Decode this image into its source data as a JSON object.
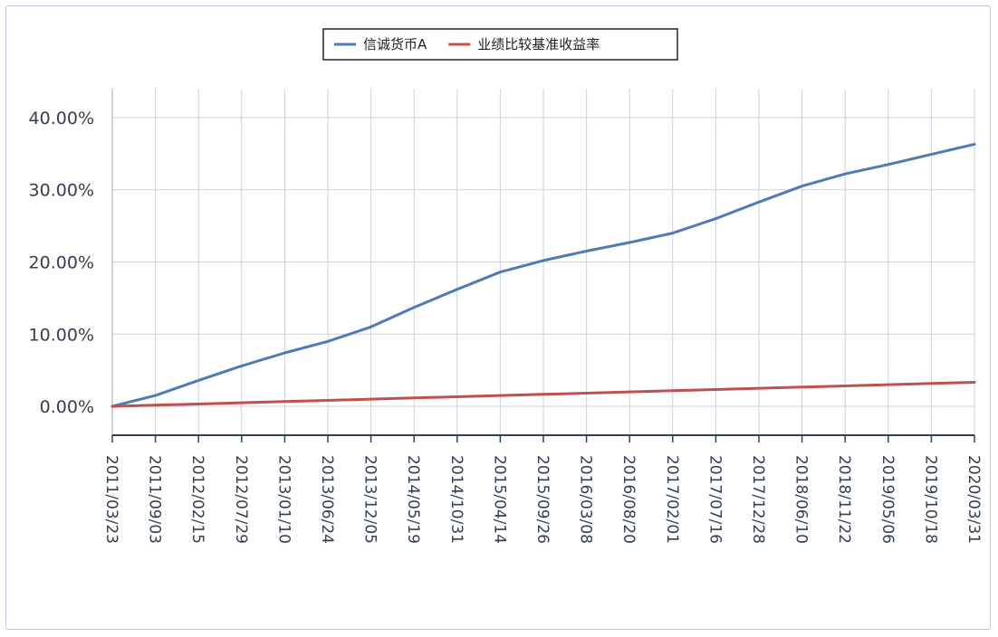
{
  "chart_data": {
    "type": "line",
    "title": "",
    "xlabel": "",
    "ylabel": "",
    "legend_position": "top-center",
    "grid": true,
    "ylim": [
      -4,
      44
    ],
    "y_ticks": [
      "0.00%",
      "10.00%",
      "20.00%",
      "30.00%",
      "40.00%"
    ],
    "y_tick_values": [
      0,
      10,
      20,
      30,
      40
    ],
    "x_ticks": [
      "2011/03/23",
      "2011/09/03",
      "2012/02/15",
      "2012/07/29",
      "2013/01/10",
      "2013/06/24",
      "2013/12/05",
      "2014/05/19",
      "2014/10/31",
      "2015/04/14",
      "2015/09/26",
      "2016/03/08",
      "2016/08/20",
      "2017/02/01",
      "2017/07/16",
      "2017/12/28",
      "2018/06/10",
      "2018/11/22",
      "2019/05/06",
      "2019/10/18",
      "2020/03/31"
    ],
    "series": [
      {
        "name": "信诚货币A",
        "color": "#4e7ab5",
        "x": [
          "2011/03/23",
          "2011/09/03",
          "2012/02/15",
          "2012/07/29",
          "2013/01/10",
          "2013/06/24",
          "2013/12/05",
          "2014/05/19",
          "2014/10/31",
          "2015/04/14",
          "2015/09/26",
          "2016/03/08",
          "2016/08/20",
          "2017/02/01",
          "2017/07/16",
          "2017/12/28",
          "2018/06/10",
          "2018/11/22",
          "2019/05/06",
          "2019/10/18",
          "2020/03/31"
        ],
        "values": [
          0.0,
          1.5,
          3.6,
          5.6,
          7.4,
          9.0,
          11.0,
          13.7,
          16.2,
          18.6,
          20.2,
          21.5,
          22.7,
          24.0,
          26.0,
          28.3,
          30.5,
          32.2,
          33.5,
          34.9,
          36.3
        ]
      },
      {
        "name": "业绩比较基准收益率",
        "color": "#c0504d",
        "x": [
          "2011/03/23",
          "2011/09/03",
          "2012/02/15",
          "2012/07/29",
          "2013/01/10",
          "2013/06/24",
          "2013/12/05",
          "2014/05/19",
          "2014/10/31",
          "2015/04/14",
          "2015/09/26",
          "2016/03/08",
          "2016/08/20",
          "2017/02/01",
          "2017/07/16",
          "2017/12/28",
          "2018/06/10",
          "2018/11/22",
          "2019/05/06",
          "2019/10/18",
          "2020/03/31"
        ],
        "values": [
          0.0,
          0.17,
          0.33,
          0.5,
          0.67,
          0.83,
          1.0,
          1.17,
          1.33,
          1.5,
          1.67,
          1.83,
          2.0,
          2.17,
          2.33,
          2.5,
          2.67,
          2.83,
          3.0,
          3.17,
          3.33
        ]
      }
    ]
  }
}
